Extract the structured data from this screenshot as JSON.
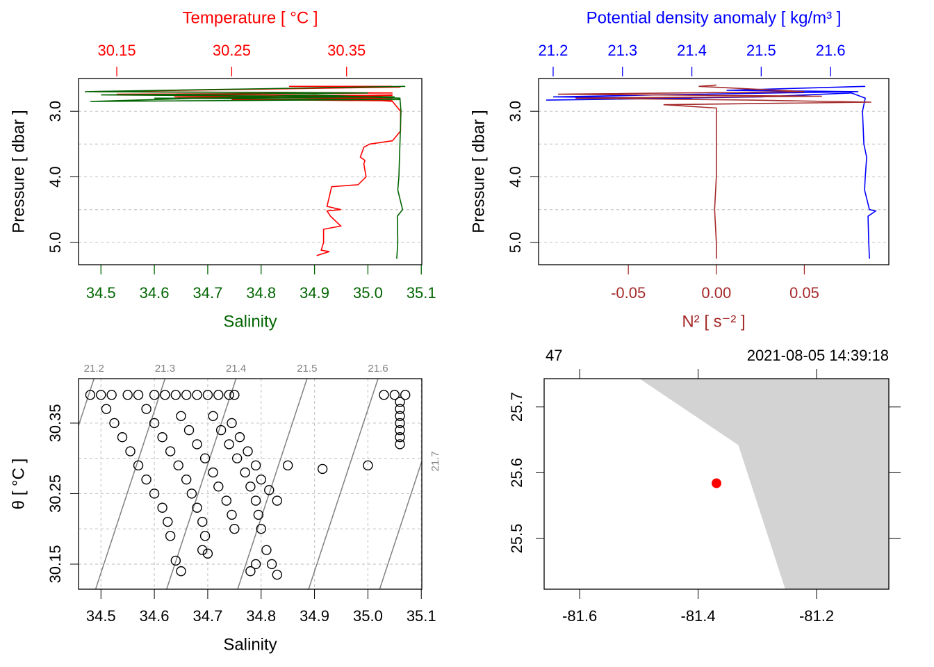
{
  "chart_data": [
    {
      "type": "profile",
      "ylabel": "Pressure [ dbar ]",
      "ylim": [
        5.34,
        2.5
      ],
      "yticks": [
        {
          "value": 3,
          "label": "3.0"
        },
        {
          "value": 4,
          "label": "4.0"
        },
        {
          "value": 5,
          "label": "5.0"
        }
      ],
      "ygrid": [
        3,
        3.5,
        4,
        4.5,
        5
      ],
      "x_top": {
        "label": "Temperature [ °C ]",
        "color": "#ff0000",
        "lim": [
          30.1167,
          30.4155
        ],
        "ticks": [
          30.15,
          30.25,
          30.35
        ]
      },
      "x_bottom": {
        "label": "Salinity",
        "color": "#006400",
        "lim": [
          34.458,
          35.101
        ],
        "ticks": [
          34.5,
          34.6,
          34.7,
          34.8,
          34.9,
          {
            "value": 35,
            "label": "35.0"
          },
          35.1
        ]
      },
      "series": [
        {
          "axis": "top",
          "color": "#ff0000",
          "values": [
            30.39,
            30.3,
            30.397,
            30.13,
            30.39,
            30.15,
            30.39,
            30.2,
            30.39,
            30.25,
            30.39,
            30.3,
            30.39,
            30.35,
            30.39,
            30.397,
            30.397,
            30.39,
            30.37,
            30.365,
            30.362,
            30.366,
            30.365,
            30.367,
            30.36,
            30.337,
            30.335,
            30.333,
            30.345,
            30.333,
            30.336,
            30.345,
            30.33,
            30.33,
            30.328,
            30.335,
            30.324
          ],
          "pressure": [
            2.62,
            2.62,
            2.63,
            2.7,
            2.72,
            2.74,
            2.76,
            2.78,
            2.8,
            2.82,
            2.84,
            2.78,
            2.75,
            2.8,
            2.85,
            3.0,
            3.3,
            3.45,
            3.5,
            3.55,
            3.7,
            3.75,
            3.8,
            4.0,
            4.12,
            4.15,
            4.3,
            4.45,
            4.5,
            4.52,
            4.6,
            4.75,
            4.8,
            5.0,
            5.12,
            5.14,
            5.2
          ]
        },
        {
          "axis": "bottom",
          "color": "#006400",
          "values": [
            35.07,
            34.47,
            35.0,
            34.5,
            35.05,
            34.6,
            35.06,
            34.48,
            34.9,
            35.06,
            35.062,
            35.06,
            35.058,
            35.056,
            35.065,
            35.055,
            35.056,
            35.054
          ],
          "pressure": [
            2.62,
            2.7,
            2.72,
            2.75,
            2.78,
            2.8,
            2.82,
            2.85,
            2.75,
            2.8,
            3.0,
            3.5,
            4.0,
            4.2,
            4.5,
            4.6,
            5.0,
            5.25
          ]
        }
      ]
    },
    {
      "type": "profile",
      "ylabel": "Pressure [ dbar ]",
      "ylim": [
        5.34,
        2.5
      ],
      "yticks": [
        {
          "value": 3,
          "label": "3.0"
        },
        {
          "value": 4,
          "label": "4.0"
        },
        {
          "value": 5,
          "label": "5.0"
        }
      ],
      "ygrid": [
        3,
        3.5,
        4,
        4.5,
        5
      ],
      "x_top": {
        "label": "Potential density anomaly [ kg/m³ ]",
        "color": "#0000ff",
        "lim": [
          21.179,
          21.684
        ],
        "ticks": [
          21.2,
          21.3,
          21.4,
          21.5,
          21.6
        ]
      },
      "x_bottom": {
        "label": "N² [ s⁻² ]",
        "color": "#a52a2a",
        "lim": [
          -0.101,
          0.098
        ],
        "ticks": [
          -0.05,
          {
            "value": 0,
            "label": "0.00"
          },
          0.05
        ]
      },
      "series": [
        {
          "axis": "top",
          "color": "#0000ff",
          "values": [
            21.65,
            21.45,
            21.64,
            21.35,
            21.2,
            21.4,
            21.19,
            21.5,
            21.63,
            21.65,
            21.646,
            21.648,
            21.652,
            21.65,
            21.649,
            21.656,
            21.665,
            21.654,
            21.655,
            21.656
          ],
          "pressure": [
            2.62,
            2.68,
            2.7,
            2.75,
            2.78,
            2.8,
            2.83,
            2.78,
            2.72,
            2.8,
            3.0,
            3.5,
            3.7,
            4.0,
            4.2,
            4.5,
            4.52,
            4.6,
            5.0,
            5.25
          ]
        },
        {
          "axis": "bottom",
          "color": "#a52a2a",
          "values": [
            0,
            -0.01,
            0.05,
            -0.09,
            0.06,
            -0.08,
            0.02,
            0.088,
            -0.03,
            0,
            0,
            0,
            -0.001,
            0,
            0
          ],
          "pressure": [
            2.6,
            2.62,
            2.7,
            2.74,
            2.77,
            2.8,
            2.83,
            2.86,
            2.9,
            2.95,
            3.5,
            4.0,
            4.5,
            5.0,
            5.25
          ]
        }
      ]
    },
    {
      "type": "scatter",
      "xlabel": "Salinity",
      "ylabel": "θ [ °C ]",
      "xlim": [
        34.458,
        35.101
      ],
      "xticks": [
        34.5,
        34.6,
        34.7,
        34.8,
        34.9,
        {
          "value": 35,
          "label": "35.0"
        },
        35.1
      ],
      "ylim": [
        30.1145,
        30.413
      ],
      "yticks": [
        30.15,
        30.25,
        30.35
      ],
      "ygrid": [
        30.15,
        30.2,
        30.25,
        30.3,
        30.35
      ],
      "x": [
        34.48,
        34.5,
        34.52,
        34.55,
        34.57,
        34.6,
        34.62,
        34.64,
        34.66,
        34.68,
        34.7,
        34.72,
        34.74,
        34.75,
        35.03,
        35.05,
        35.07,
        35.06,
        35.06,
        35.06,
        35.06,
        35.06,
        35.06,
        35.06,
        34.51,
        34.525,
        34.54,
        34.555,
        34.57,
        34.585,
        34.6,
        34.615,
        34.625,
        34.63,
        34.585,
        34.6,
        34.615,
        34.63,
        34.645,
        34.66,
        34.67,
        34.68,
        34.69,
        34.695,
        34.7,
        34.65,
        34.665,
        34.68,
        34.695,
        34.71,
        34.72,
        34.735,
        34.745,
        34.75,
        34.71,
        34.725,
        34.74,
        34.755,
        34.77,
        34.78,
        34.79,
        34.795,
        34.8,
        34.81,
        34.82,
        34.83,
        34.745,
        34.76,
        34.775,
        34.79,
        34.8,
        34.815,
        34.83,
        34.64,
        34.65,
        34.69,
        34.79,
        34.78,
        34.85,
        34.915,
        35.0
      ],
      "values": [
        30.39,
        30.39,
        30.39,
        30.39,
        30.39,
        30.39,
        30.39,
        30.39,
        30.39,
        30.39,
        30.39,
        30.39,
        30.39,
        30.39,
        30.39,
        30.39,
        30.39,
        30.38,
        30.37,
        30.36,
        30.35,
        30.34,
        30.33,
        30.32,
        30.37,
        30.35,
        30.33,
        30.31,
        30.29,
        30.27,
        30.25,
        30.23,
        30.21,
        30.19,
        30.37,
        30.35,
        30.33,
        30.31,
        30.29,
        30.27,
        30.25,
        30.23,
        30.21,
        30.19,
        30.165,
        30.36,
        30.34,
        30.32,
        30.3,
        30.28,
        30.26,
        30.24,
        30.22,
        30.2,
        30.36,
        30.34,
        30.32,
        30.3,
        30.28,
        30.26,
        30.24,
        30.22,
        30.2,
        30.17,
        30.15,
        30.135,
        30.35,
        30.33,
        30.31,
        30.29,
        30.27,
        30.255,
        30.24,
        30.155,
        30.14,
        30.17,
        30.15,
        30.14,
        30.29,
        30.285,
        30.29
      ],
      "isopycnals": [
        {
          "sigma": 21.2,
          "salinity": [
            34.357,
            34.487
          ],
          "theta": [
            30.1145,
            30.413
          ]
        },
        {
          "sigma": 21.3,
          "salinity": [
            34.49,
            34.62
          ],
          "theta": [
            30.1145,
            30.413
          ]
        },
        {
          "sigma": 21.4,
          "salinity": [
            34.623,
            34.753
          ],
          "theta": [
            30.1145,
            30.413
          ]
        },
        {
          "sigma": 21.5,
          "salinity": [
            34.756,
            34.886
          ],
          "theta": [
            30.1145,
            30.413
          ]
        },
        {
          "sigma": 21.6,
          "salinity": [
            34.889,
            35.019
          ],
          "theta": [
            30.1145,
            30.413
          ]
        },
        {
          "sigma": 21.7,
          "salinity": [
            35.022,
            35.152
          ],
          "theta": [
            30.1145,
            30.413
          ]
        }
      ]
    },
    {
      "type": "map",
      "title_left": "47",
      "title_right": "2021-08-05 14:39:18",
      "xlim": [
        -81.66,
        -81.078
      ],
      "xticks": [
        -81.6,
        -81.4,
        -81.2
      ],
      "ylim": [
        25.423,
        25.743
      ],
      "yticks": [
        25.5,
        25.6,
        25.7
      ],
      "land": {
        "color": "#d3d3d3",
        "lon": [
          -81.499,
          -81.332,
          -81.253,
          -81.078,
          -81.078
        ],
        "lat": [
          25.743,
          25.642,
          25.423,
          25.423,
          25.743
        ]
      },
      "station": {
        "color": "#ff0000",
        "lon": -81.369,
        "lat": 25.584
      }
    }
  ]
}
